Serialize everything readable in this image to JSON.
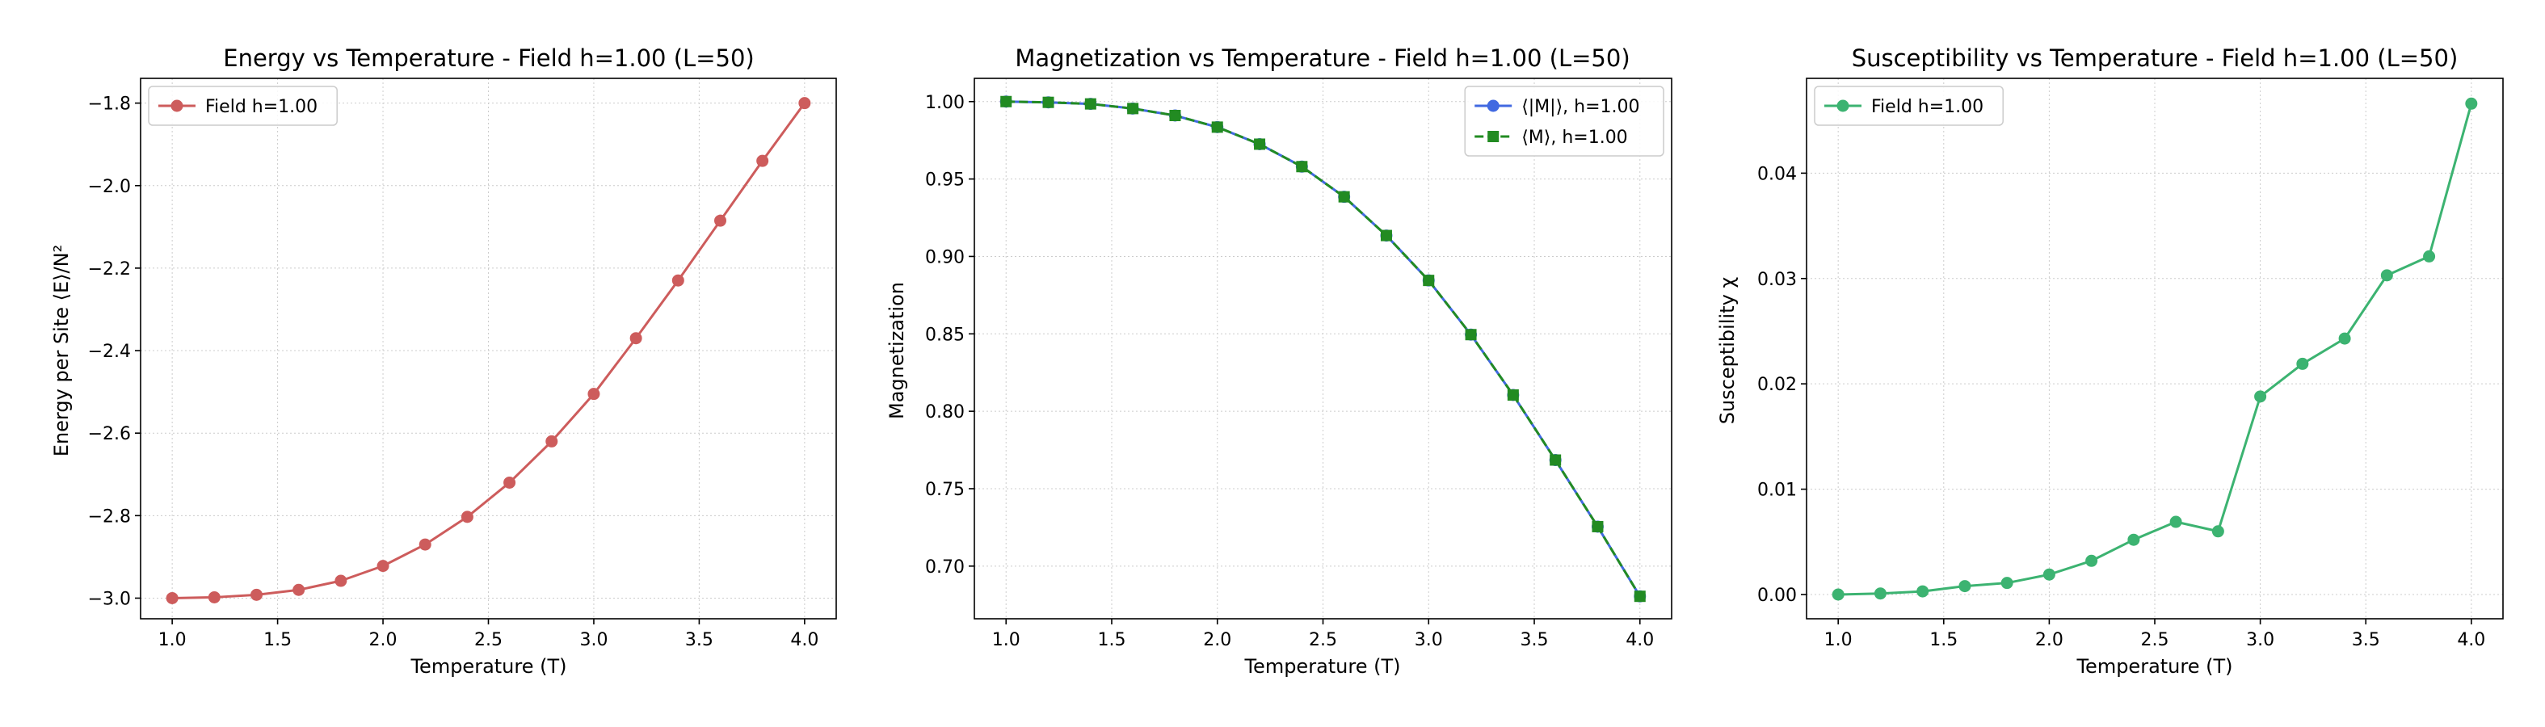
{
  "figure": {
    "background": "#ffffff",
    "grid_color": "#cccccc",
    "frame_color": "#000000"
  },
  "chart_data": [
    {
      "type": "line",
      "title": "Energy vs Temperature - Field h=1.00 (L=50)",
      "xlabel": "Temperature (T)",
      "ylabel": "Energy per Site ⟨E⟩/N²",
      "xlim": [
        0.85,
        4.15
      ],
      "ylim": [
        -3.05,
        -1.74
      ],
      "xticks": [
        1.0,
        1.5,
        2.0,
        2.5,
        3.0,
        3.5,
        4.0
      ],
      "xtick_labels": [
        "1.0",
        "1.5",
        "2.0",
        "2.5",
        "3.0",
        "3.5",
        "4.0"
      ],
      "yticks": [
        -3.0,
        -2.8,
        -2.6,
        -2.4,
        -2.2,
        -2.0,
        -1.8
      ],
      "ytick_labels": [
        "−3.0",
        "−2.8",
        "−2.6",
        "−2.4",
        "−2.2",
        "−2.0",
        "−1.8"
      ],
      "grid": true,
      "legend_position": "upper-left",
      "x": [
        1.0,
        1.2,
        1.4,
        1.6,
        1.8,
        2.0,
        2.2,
        2.4,
        2.6,
        2.8,
        3.0,
        3.2,
        3.4,
        3.6,
        3.8,
        4.0
      ],
      "series": [
        {
          "name": "Field h=1.00",
          "color": "#cd5c5c",
          "marker": "circle",
          "dash": false,
          "values": [
            -3.0,
            -2.998,
            -2.992,
            -2.98,
            -2.958,
            -2.922,
            -2.87,
            -2.803,
            -2.72,
            -2.62,
            -2.505,
            -2.37,
            -2.23,
            -2.085,
            -1.94,
            -1.8
          ]
        }
      ]
    },
    {
      "type": "line",
      "title": "Magnetization vs Temperature - Field h=1.00 (L=50)",
      "xlabel": "Temperature (T)",
      "ylabel": "Magnetization",
      "xlim": [
        0.85,
        4.15
      ],
      "ylim": [
        0.666,
        1.015
      ],
      "xticks": [
        1.0,
        1.5,
        2.0,
        2.5,
        3.0,
        3.5,
        4.0
      ],
      "xtick_labels": [
        "1.0",
        "1.5",
        "2.0",
        "2.5",
        "3.0",
        "3.5",
        "4.0"
      ],
      "yticks": [
        0.7,
        0.75,
        0.8,
        0.85,
        0.9,
        0.95,
        1.0
      ],
      "ytick_labels": [
        "0.70",
        "0.75",
        "0.80",
        "0.85",
        "0.90",
        "0.95",
        "1.00"
      ],
      "grid": true,
      "legend_position": "upper-right",
      "x": [
        1.0,
        1.2,
        1.4,
        1.6,
        1.8,
        2.0,
        2.2,
        2.4,
        2.6,
        2.8,
        3.0,
        3.2,
        3.4,
        3.6,
        3.8,
        4.0
      ],
      "series": [
        {
          "name": "⟨|M|⟩, h=1.00",
          "color": "#4169e1",
          "marker": "circle",
          "dash": false,
          "values": [
            1.0,
            0.9995,
            0.9985,
            0.9955,
            0.991,
            0.9835,
            0.9725,
            0.958,
            0.9385,
            0.9135,
            0.8845,
            0.8495,
            0.8105,
            0.7685,
            0.7255,
            0.6805
          ]
        },
        {
          "name": "⟨M⟩, h=1.00",
          "color": "#228b22",
          "marker": "square",
          "dash": true,
          "values": [
            1.0,
            0.9995,
            0.9985,
            0.9955,
            0.991,
            0.9835,
            0.9725,
            0.958,
            0.9385,
            0.9135,
            0.8845,
            0.8495,
            0.8105,
            0.7685,
            0.7255,
            0.6805
          ]
        }
      ]
    },
    {
      "type": "line",
      "title": "Susceptibility vs Temperature - Field h=1.00 (L=50)",
      "xlabel": "Temperature (T)",
      "ylabel": "Susceptibility χ",
      "xlim": [
        0.85,
        4.15
      ],
      "ylim": [
        -0.0023,
        0.049
      ],
      "xticks": [
        1.0,
        1.5,
        2.0,
        2.5,
        3.0,
        3.5,
        4.0
      ],
      "xtick_labels": [
        "1.0",
        "1.5",
        "2.0",
        "2.5",
        "3.0",
        "3.5",
        "4.0"
      ],
      "yticks": [
        0.0,
        0.01,
        0.02,
        0.03,
        0.04
      ],
      "ytick_labels": [
        "0.00",
        "0.01",
        "0.02",
        "0.03",
        "0.04"
      ],
      "grid": true,
      "legend_position": "upper-left",
      "x": [
        1.0,
        1.2,
        1.4,
        1.6,
        1.8,
        2.0,
        2.2,
        2.4,
        2.6,
        2.8,
        3.0,
        3.2,
        3.4,
        3.6,
        3.8,
        4.0
      ],
      "series": [
        {
          "name": "Field h=1.00",
          "color": "#3cb371",
          "marker": "circle",
          "dash": false,
          "values": [
            0.0,
            0.0001,
            0.0003,
            0.0008,
            0.0011,
            0.0019,
            0.0032,
            0.0052,
            0.0069,
            0.006,
            0.0188,
            0.0219,
            0.0243,
            0.0303,
            0.0321,
            0.0466
          ]
        }
      ]
    }
  ]
}
